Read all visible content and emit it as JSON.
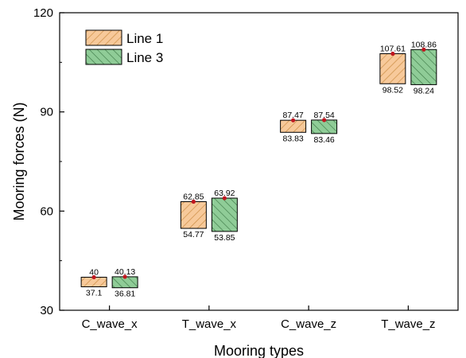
{
  "chart_data": {
    "type": "floating-bar",
    "title": "",
    "xlabel": "Mooring types",
    "ylabel": "Mooring forces (N)",
    "ylim": [
      30,
      120
    ],
    "yticks": [
      30,
      60,
      90,
      120
    ],
    "categories": [
      "C_wave_x",
      "T_wave_x",
      "C_wave_z",
      "T_wave_z"
    ],
    "series": [
      {
        "name": "Line 1",
        "color": "#f7c99a",
        "hatch_color": "#c98a3f",
        "min_labels": [
          "37.1",
          "54.77",
          "83.83",
          "98.52"
        ],
        "max_labels": [
          "40",
          "62.85",
          "87.47",
          "107.61"
        ],
        "min": [
          37.1,
          54.77,
          83.83,
          98.52
        ],
        "max": [
          40,
          62.85,
          87.47,
          107.61
        ]
      },
      {
        "name": "Line 3",
        "color": "#8fcc97",
        "hatch_color": "#3d7a47",
        "min_labels": [
          "36.81",
          "53.85",
          "83.46",
          "98.24"
        ],
        "max_labels": [
          "40.13",
          "63.92",
          "87.54",
          "108.86"
        ],
        "min": [
          36.81,
          53.85,
          83.46,
          98.24
        ],
        "max": [
          40.13,
          63.92,
          87.54,
          108.86
        ]
      }
    ],
    "marker_color": "#c0161f",
    "legend_position": "top-left",
    "grid": false
  }
}
